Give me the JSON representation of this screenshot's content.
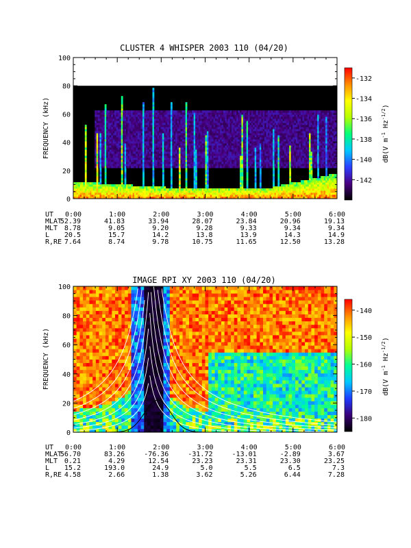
{
  "chart_data": [
    {
      "type": "heatmap",
      "title": "CLUSTER 4 WHISPER 2003 110 (04/20)",
      "ylabel": "FREQUENCY (kHz)",
      "ylim": [
        0,
        100
      ],
      "yticks": [
        "0",
        "20",
        "40",
        "60",
        "80",
        "100"
      ],
      "xlim": [
        "0:00",
        "6:00"
      ],
      "data_fmax_khz": 80,
      "colorbar": {
        "label_parts": [
          "dB(",
          "V m",
          "-1",
          " Hz",
          "-1/2",
          ")"
        ],
        "range": [
          -144,
          -131
        ],
        "ticks": [
          "-132",
          "-134",
          "-136",
          "-138",
          "-140",
          "-142"
        ],
        "colors": [
          "#000000",
          "#4a0082",
          "#2b3fff",
          "#00c8ff",
          "#00ff7a",
          "#b4ff00",
          "#ffff00",
          "#ff8c00",
          "#ff0000"
        ]
      },
      "ephemeris": {
        "labels": [
          "UT",
          "MLAT",
          "MLT",
          "L",
          "R,RE"
        ],
        "columns": [
          [
            "0:00",
            "52.39",
            "8.78",
            "20.5",
            "7.64"
          ],
          [
            "1:00",
            "41.83",
            "9.05",
            "15.7",
            "8.74"
          ],
          [
            "2:00",
            "33.94",
            "9.20",
            "14.2",
            "9.78"
          ],
          [
            "3:00",
            "28.07",
            "9.28",
            "13.8",
            "10.75"
          ],
          [
            "4:00",
            "23.84",
            "9.33",
            "13.9",
            "11.65"
          ],
          [
            "5:00",
            "20.96",
            "9.34",
            "14.3",
            "12.50"
          ],
          [
            "6:00",
            "19.13",
            "9.34",
            "14.9",
            "13.28"
          ]
        ]
      }
    },
    {
      "type": "heatmap",
      "title": "IMAGE RPI XY 2003 110 (04/20)",
      "ylabel": "FREQUENCY (kHz)",
      "ylim": [
        0,
        100
      ],
      "yticks": [
        "0",
        "20",
        "40",
        "60",
        "80",
        "100"
      ],
      "xlim": [
        "0:00",
        "6:00"
      ],
      "colorbar": {
        "label_parts": [
          "dB(",
          "V m",
          "-1",
          " Hz",
          "-1/2",
          ")"
        ],
        "range": [
          -185,
          -136
        ],
        "ticks": [
          "-140",
          "-150",
          "-160",
          "-170",
          "-180"
        ],
        "colors": [
          "#000000",
          "#3a0078",
          "#1e3cff",
          "#00c8ff",
          "#00ff96",
          "#b4ff00",
          "#ffff00",
          "#ff8c00",
          "#ff0000"
        ]
      },
      "ephemeris": {
        "labels": [
          "UT",
          "MLAT",
          "MLT",
          "L",
          "R,RE"
        ],
        "columns": [
          [
            "0:00",
            "56.70",
            "0.21",
            "15.2",
            "4.58"
          ],
          [
            "1:00",
            "83.26",
            "4.29",
            "193.0",
            "2.66"
          ],
          [
            "2:00",
            "-76.36",
            "12.54",
            "24.9",
            "1.38"
          ],
          [
            "3:00",
            "-31.72",
            "23.23",
            "5.0",
            "3.62"
          ],
          [
            "4:00",
            "-13.01",
            "23.31",
            "5.5",
            "5.26"
          ],
          [
            "5:00",
            "-2.89",
            "23.30",
            "6.5",
            "6.44"
          ],
          [
            "6:00",
            "3.67",
            "23.25",
            "7.3",
            "7.28"
          ]
        ]
      }
    }
  ]
}
